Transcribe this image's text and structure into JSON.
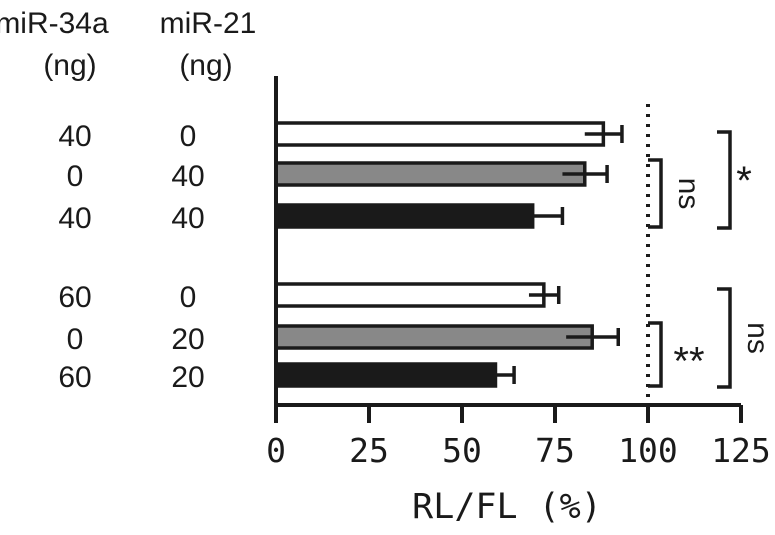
{
  "chart_data": {
    "type": "bar",
    "orientation": "horizontal",
    "xlabel": "RL/FL (%)",
    "xlim": [
      0,
      125
    ],
    "xticks": [
      0,
      25,
      50,
      75,
      100,
      125
    ],
    "reference_line": 100,
    "grid": false,
    "table_headers": [
      {
        "line1": "miR-34a",
        "line2": "(ng)"
      },
      {
        "line1": "miR-21",
        "line2": "(ng)"
      }
    ],
    "groups": [
      {
        "bars": [
          {
            "mir34a": "40",
            "mir21": "0",
            "value": 88,
            "error": 5,
            "fill": "#ffffff"
          },
          {
            "mir34a": "0",
            "mir21": "40",
            "value": 83,
            "error": 6,
            "fill": "#888888"
          },
          {
            "mir34a": "40",
            "mir21": "40",
            "value": 69,
            "error": 8,
            "fill": "#1a1a1a"
          }
        ]
      },
      {
        "bars": [
          {
            "mir34a": "60",
            "mir21": "0",
            "value": 72,
            "error": 4,
            "fill": "#ffffff"
          },
          {
            "mir34a": "0",
            "mir21": "20",
            "value": 85,
            "error": 7,
            "fill": "#888888"
          },
          {
            "mir34a": "60",
            "mir21": "20",
            "value": 59,
            "error": 5,
            "fill": "#1a1a1a"
          }
        ]
      }
    ],
    "significance": [
      {
        "group": 0,
        "from": 1,
        "to": 2,
        "label": "ns",
        "rotated": true
      },
      {
        "group": 0,
        "from": 0,
        "to": 2,
        "label": "*",
        "rotated": false
      },
      {
        "group": 1,
        "from": 1,
        "to": 2,
        "label": "**",
        "rotated": false
      },
      {
        "group": 1,
        "from": 0,
        "to": 2,
        "label": "ns",
        "rotated": true
      }
    ],
    "colors": {
      "ink": "#1a1a1a",
      "gray_bar": "#888888",
      "white_bar": "#ffffff"
    }
  }
}
